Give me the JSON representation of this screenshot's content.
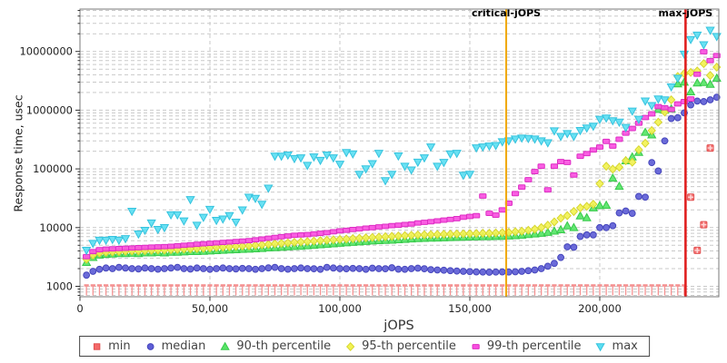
{
  "chart_data": {
    "type": "scatter",
    "title": "",
    "xlabel": "jOPS",
    "ylabel": "Response time, usec",
    "grid": true,
    "legend_position": "bottom",
    "background": "#ffffff",
    "x_axis": {
      "min": 0,
      "max": 246000,
      "ticks": [
        0,
        50000,
        100000,
        150000,
        200000
      ],
      "tick_labels": [
        "0",
        "50,000",
        "100,000",
        "150,000",
        "200,000"
      ]
    },
    "y_axis": {
      "scale": "log",
      "min": 660,
      "max": 52000000,
      "ticks": [
        1000,
        10000,
        100000,
        1000000,
        10000000
      ],
      "tick_labels": [
        "1000",
        "10000",
        "100000",
        "1000000",
        "10000000"
      ]
    },
    "jops_start": 2500,
    "jops_step": 2500,
    "reference_lines": [
      {
        "label": "critical-jOPS",
        "x": 164000,
        "color": "#f0a800",
        "width": 2
      },
      {
        "label": "max-jOPS",
        "x": 233000,
        "color": "#e02020",
        "width": 2.6
      }
    ],
    "series": [
      {
        "name": "min",
        "marker": "square",
        "color": "#f46a6a",
        "edge": "#e04e4e",
        "comb_color": "#f59292",
        "drop_lines": true,
        "values": [
          1000,
          1000,
          1000,
          1000,
          1000,
          1000,
          1000,
          1000,
          1000,
          1000,
          1000,
          1000,
          1000,
          1000,
          1000,
          1000,
          1000,
          1000,
          1000,
          1000,
          1000,
          1000,
          1000,
          1000,
          1000,
          1000,
          1000,
          1000,
          1000,
          1000,
          1000,
          1000,
          1000,
          1000,
          1000,
          1000,
          1000,
          1000,
          1000,
          1000,
          1000,
          1000,
          1000,
          1000,
          1000,
          1000,
          1000,
          1000,
          1000,
          1000,
          1000,
          1000,
          1000,
          1000,
          1000,
          1000,
          1000,
          1000,
          1000,
          1000,
          1000,
          1000,
          1000,
          1000,
          1000,
          1000,
          1000,
          1000,
          1000,
          1000,
          1000,
          1000,
          1000,
          1000,
          1000,
          1000,
          1000,
          1000,
          1000,
          1000,
          1000,
          1000,
          1000,
          1000,
          1000,
          1000,
          1000,
          1000,
          1000,
          1000,
          1000,
          1000,
          1000,
          33000,
          4100,
          11200,
          227000
        ]
      },
      {
        "name": "median",
        "marker": "circle",
        "color": "#5e5ed6",
        "edge": "#4646bc",
        "values": [
          1550,
          1800,
          1950,
          2050,
          2000,
          2100,
          2050,
          2000,
          1980,
          2050,
          2000,
          1960,
          2000,
          2050,
          2100,
          2000,
          1970,
          2050,
          2000,
          1950,
          2000,
          2050,
          2000,
          1980,
          2020,
          2000,
          1950,
          2000,
          2060,
          2100,
          2000,
          1960,
          2000,
          2050,
          2000,
          1990,
          1950,
          2100,
          2050,
          2000,
          1990,
          2020,
          2000,
          1950,
          2040,
          2000,
          1990,
          2070,
          1960,
          1950,
          2000,
          2040,
          1990,
          1920,
          1900,
          1880,
          1850,
          1820,
          1800,
          1780,
          1760,
          1750,
          1740,
          1750,
          1760,
          1750,
          1770,
          1800,
          1850,
          1900,
          2000,
          2200,
          2460,
          3100,
          4700,
          4630,
          7060,
          7520,
          7520,
          10000,
          10000,
          10760,
          17800,
          19200,
          17500,
          34000,
          33000,
          128000,
          92000,
          300000,
          720000,
          744000,
          900000,
          1230000,
          1430000,
          1400000,
          1500000,
          1660000
        ]
      },
      {
        "name": "90-th percentile",
        "marker": "triangle-up",
        "color": "#57e567",
        "edge": "#36c94a",
        "values": [
          2550,
          3100,
          3400,
          3500,
          3550,
          3600,
          3600,
          3650,
          3600,
          3700,
          3700,
          3750,
          3700,
          3800,
          3800,
          3850,
          3900,
          3900,
          3950,
          4000,
          4050,
          4100,
          4150,
          4200,
          4250,
          4300,
          4350,
          4400,
          4500,
          4550,
          4600,
          4700,
          4750,
          4800,
          4900,
          5000,
          5100,
          5200,
          5300,
          5400,
          5500,
          5600,
          5700,
          5800,
          5900,
          6000,
          6050,
          6100,
          6200,
          6300,
          6400,
          6500,
          6550,
          6600,
          6650,
          6700,
          6750,
          6800,
          6850,
          6900,
          6950,
          7000,
          7000,
          7050,
          7100,
          7200,
          7300,
          7400,
          7600,
          7800,
          8000,
          8300,
          8700,
          9200,
          10700,
          10000,
          15800,
          14700,
          21700,
          23700,
          24000,
          69600,
          50500,
          137000,
          160000,
          191000,
          420000,
          378000,
          1030000,
          1000000,
          1050000,
          2800000,
          3000000,
          2050000,
          2900000,
          2960000,
          2750000,
          3500000
        ]
      },
      {
        "name": "95-th percentile",
        "marker": "diamond",
        "color": "#f2f253",
        "edge": "#d6d62f",
        "values": [
          2900,
          3400,
          3700,
          3800,
          3850,
          3900,
          3950,
          4000,
          4000,
          4050,
          4100,
          4150,
          4150,
          4200,
          4250,
          4300,
          4350,
          4400,
          4450,
          4500,
          4600,
          4650,
          4700,
          4800,
          4850,
          4900,
          5000,
          5100,
          5200,
          5300,
          5400,
          5500,
          5600,
          5700,
          5800,
          5900,
          6000,
          6100,
          6200,
          6300,
          6400,
          6500,
          6600,
          6700,
          6800,
          6900,
          7000,
          7100,
          7200,
          7300,
          7400,
          7500,
          7550,
          7600,
          7650,
          7700,
          7750,
          7800,
          7850,
          7900,
          7950,
          8000,
          8000,
          8100,
          8200,
          8300,
          8500,
          8700,
          9000,
          9400,
          10000,
          11000,
          12500,
          14500,
          16000,
          18800,
          21700,
          23000,
          25000,
          56000,
          111000,
          99000,
          107000,
          138000,
          130000,
          212000,
          273000,
          450000,
          625000,
          930000,
          1500000,
          3750000,
          4200000,
          4400000,
          4650000,
          6200000,
          3900000,
          5400000
        ]
      },
      {
        "name": "99-th percentile",
        "marker": "hbar",
        "color": "#f850e0",
        "edge": "#dd2cc3",
        "values": [
          3200,
          3900,
          4200,
          4300,
          4350,
          4400,
          4450,
          4500,
          4550,
          4600,
          4650,
          4700,
          4750,
          4800,
          4900,
          5000,
          5100,
          5200,
          5300,
          5400,
          5500,
          5600,
          5700,
          5800,
          5900,
          6000,
          6200,
          6400,
          6600,
          6800,
          7000,
          7200,
          7400,
          7500,
          7600,
          7800,
          8000,
          8200,
          8500,
          8800,
          9000,
          9300,
          9500,
          9800,
          10000,
          10300,
          10500,
          10800,
          11000,
          11300,
          11500,
          12000,
          12300,
          12600,
          13000,
          13400,
          13800,
          14200,
          15000,
          15500,
          16000,
          34500,
          17500,
          16300,
          20000,
          26000,
          38000,
          49000,
          65500,
          90000,
          111000,
          44000,
          111000,
          133000,
          129000,
          78500,
          164000,
          182000,
          210000,
          236000,
          294000,
          245000,
          320000,
          406000,
          488000,
          600000,
          750000,
          866000,
          1150000,
          1100000,
          1030000,
          1280000,
          1400000,
          1550000,
          4100000,
          9900000,
          7000000,
          8500000
        ]
      },
      {
        "name": "max",
        "marker": "triangle-down",
        "color": "#5cdef2",
        "edge": "#35c3de",
        "values": [
          4100,
          5400,
          6100,
          6100,
          6300,
          6100,
          6500,
          19000,
          7800,
          9000,
          12000,
          9300,
          10000,
          16500,
          16500,
          13000,
          30000,
          11000,
          15000,
          20500,
          13300,
          14000,
          16000,
          12400,
          20000,
          33000,
          31500,
          25000,
          47000,
          165000,
          165000,
          172000,
          150000,
          154000,
          115000,
          160000,
          140000,
          172000,
          154000,
          120000,
          190000,
          180000,
          81000,
          100000,
          123000,
          184000,
          63000,
          81000,
          166000,
          111000,
          96000,
          130000,
          154000,
          236000,
          111000,
          129000,
          180000,
          184000,
          78000,
          81000,
          228000,
          236000,
          245000,
          250000,
          290000,
          300000,
          323000,
          335000,
          330000,
          323000,
          300000,
          279000,
          445000,
          358000,
          400000,
          358000,
          450000,
          497000,
          533000,
          700000,
          735000,
          662000,
          625000,
          507000,
          966000,
          700000,
          1430000,
          1200000,
          1550000,
          1500000,
          2500000,
          3500000,
          9000000,
          16000000,
          19000000,
          13000000,
          23000000,
          18000000
        ]
      }
    ]
  }
}
